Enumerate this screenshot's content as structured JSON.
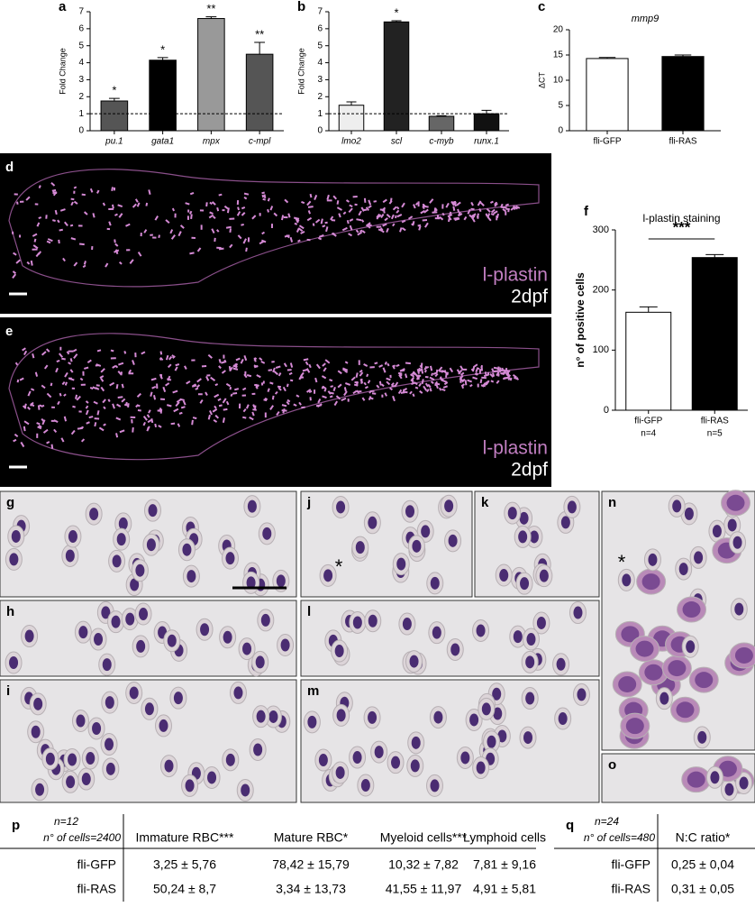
{
  "chart_data": [
    {
      "label": "a",
      "type": "bar",
      "ylabel": "Fold Change",
      "categories": [
        "pu.1",
        "gata1",
        "mpx",
        "c-mpl"
      ],
      "values": [
        1.75,
        4.15,
        6.6,
        4.5
      ],
      "errors": [
        0.15,
        0.15,
        0.1,
        0.7
      ],
      "colors": [
        "#555555",
        "#000000",
        "#999999",
        "#555555"
      ],
      "significance": [
        "*",
        "*",
        "**",
        "**"
      ],
      "reference_line": 1,
      "ylim": [
        0,
        7
      ],
      "yticks": [
        0,
        1,
        2,
        3,
        4,
        5,
        6,
        7
      ]
    },
    {
      "label": "b",
      "type": "bar",
      "ylabel": "Fold Change",
      "categories": [
        "lmo2",
        "scl",
        "c-myb",
        "runx.1"
      ],
      "values": [
        1.5,
        6.4,
        0.85,
        1.0
      ],
      "errors": [
        0.2,
        0.07,
        0.03,
        0.2
      ],
      "colors": [
        "#eeeeee",
        "#222222",
        "#666666",
        "#111111"
      ],
      "significance": [
        null,
        "*",
        null,
        null
      ],
      "reference_line": 1,
      "ylim": [
        0,
        7
      ],
      "yticks": [
        0,
        1,
        2,
        3,
        4,
        5,
        6,
        7
      ]
    },
    {
      "label": "c",
      "type": "bar",
      "title": "mmp9",
      "ylabel": "ΔCT",
      "categories": [
        "fli-GFP",
        "fli-RAS"
      ],
      "values": [
        14.3,
        14.7
      ],
      "errors": [
        0.2,
        0.3
      ],
      "colors": [
        "#ffffff",
        "#000000"
      ],
      "ylim": [
        0,
        20
      ],
      "yticks": [
        0,
        5,
        10,
        15,
        20
      ]
    },
    {
      "label": "f",
      "type": "bar",
      "title": "l-plastin staining",
      "ylabel": "n° of positive cells",
      "categories": [
        "fli-GFP",
        "fli-RAS"
      ],
      "sublabels": [
        "n=4",
        "n=5"
      ],
      "values": [
        163,
        254
      ],
      "errors": [
        9,
        5
      ],
      "colors": [
        "#ffffff",
        "#000000"
      ],
      "comparison_label": "***",
      "ylim": [
        0,
        300
      ],
      "yticks": [
        0,
        100,
        200,
        300
      ]
    }
  ],
  "images": [
    {
      "label": "d",
      "stain": "l-plastin",
      "stage": "2dpf"
    },
    {
      "label": "e",
      "stain": "l-plastin",
      "stage": "2dpf"
    }
  ],
  "micrographs": [
    {
      "label": "g"
    },
    {
      "label": "h"
    },
    {
      "label": "i"
    },
    {
      "label": "j",
      "note": "*"
    },
    {
      "label": "k"
    },
    {
      "label": "l"
    },
    {
      "label": "m"
    },
    {
      "label": "n",
      "note": "*"
    },
    {
      "label": "o"
    }
  ],
  "tables": [
    {
      "label": "p",
      "n": "n=12",
      "cells": "n° of cells=2400",
      "columns": [
        "Immature RBC***",
        "Mature RBC*",
        "Myeloid cells***",
        "Lymphoid cells"
      ],
      "rows": [
        [
          "fli-GFP",
          "3,25 ± 5,76",
          "78,42 ± 15,79",
          "10,32 ± 7,82",
          "7,81 ± 9,16"
        ],
        [
          "fli-RAS",
          "50,24 ± 8,7",
          "3,34 ± 13,73",
          "41,55 ± 11,97",
          "4,91 ± 5,81"
        ]
      ]
    },
    {
      "label": "q",
      "n": "n=24",
      "cells": "n° of cells=480",
      "columns": [
        "N:C ratio*"
      ],
      "rows": [
        [
          "fli-GFP",
          "0,25 ± 0,04"
        ],
        [
          "fli-RAS",
          "0,31 ± 0,05"
        ]
      ]
    }
  ]
}
